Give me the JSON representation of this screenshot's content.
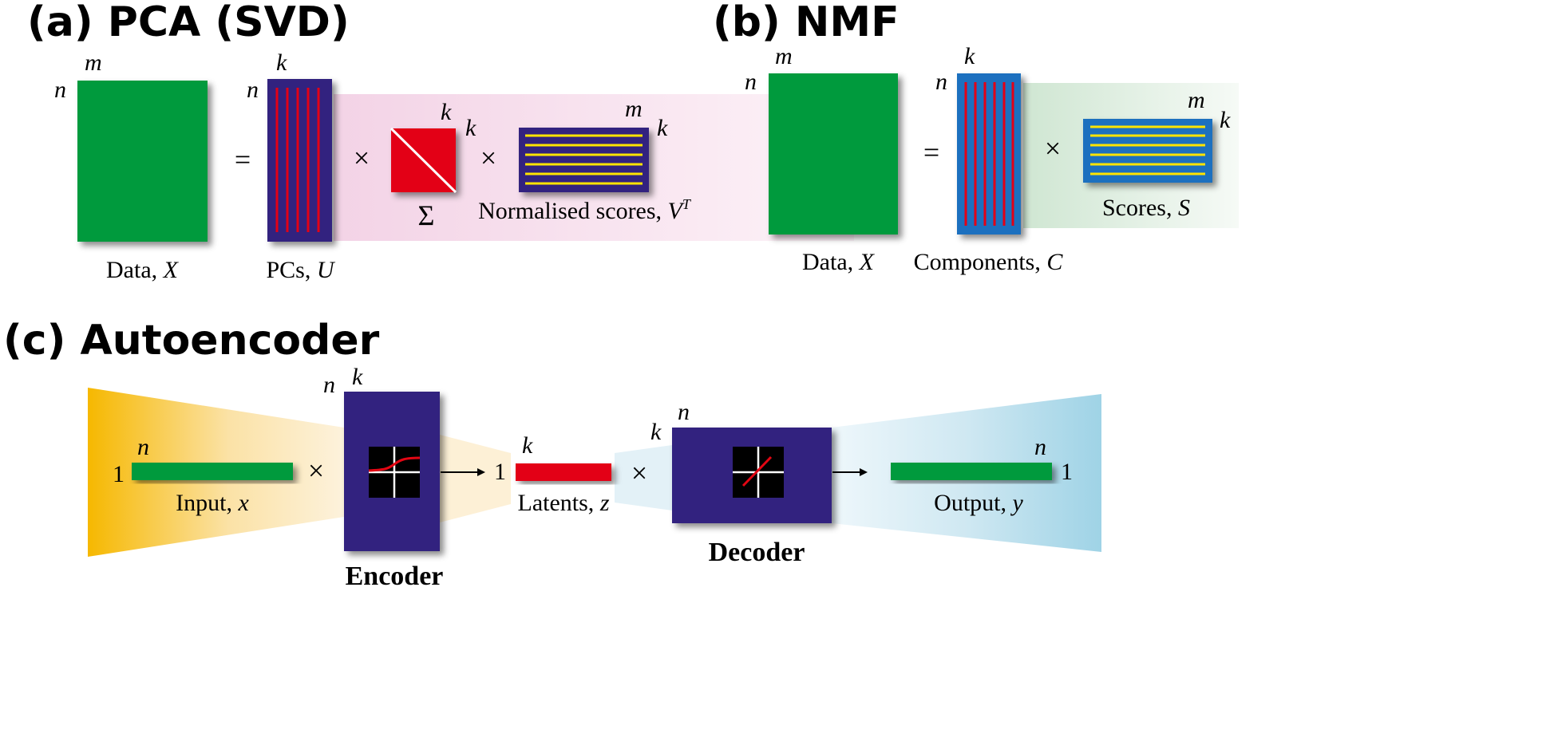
{
  "colors": {
    "data_green": "#009a3e",
    "matrix_navy": "#31247f",
    "matrix_blue": "#1f6fbf",
    "red": "#e30613",
    "yellow": "#ffe400",
    "pink_band": "#f6dcea",
    "green_band": "#d9ecd9",
    "orange_band": "#f6b400",
    "cyan_band": "#9fd3e6"
  },
  "panel_a": {
    "title": "(a) PCA (SVD)",
    "equals": "=",
    "times": "×",
    "sigma": "Σ",
    "data": {
      "rows": "n",
      "cols": "m",
      "caption": "Data, ",
      "var": "X"
    },
    "pcs": {
      "rows": "n",
      "cols": "k",
      "caption": "PCs, ",
      "var": "U"
    },
    "sigma_matrix": {
      "rows": "k",
      "cols": "k"
    },
    "scores": {
      "rows": "k",
      "cols": "m",
      "caption": "Normalised scores, ",
      "var": "V",
      "sup": "T"
    }
  },
  "panel_b": {
    "title": "(b) NMF",
    "equals": "=",
    "times": "×",
    "data": {
      "rows": "n",
      "cols": "m",
      "caption": "Data, ",
      "var": "X"
    },
    "components": {
      "rows": "n",
      "cols": "k",
      "caption": "Components, ",
      "var": "C"
    },
    "scores": {
      "rows": "k",
      "cols": "m",
      "caption": "Scores, ",
      "var": "S"
    }
  },
  "panel_c": {
    "title": "(c) Autoencoder",
    "times": "×",
    "input": {
      "rows": "1",
      "cols": "n",
      "caption": "Input, ",
      "var": "x"
    },
    "encoder": {
      "rows": "n",
      "cols": "k",
      "label": "Encoder",
      "activation": "sigmoid"
    },
    "latents": {
      "rows": "1",
      "cols": "k",
      "caption": "Latents, ",
      "var": "z"
    },
    "decoder": {
      "rows": "k",
      "cols": "n",
      "label": "Decoder",
      "activation": "linear"
    },
    "output": {
      "rows": "1",
      "cols": "n",
      "caption": "Output, ",
      "var": "y"
    }
  }
}
